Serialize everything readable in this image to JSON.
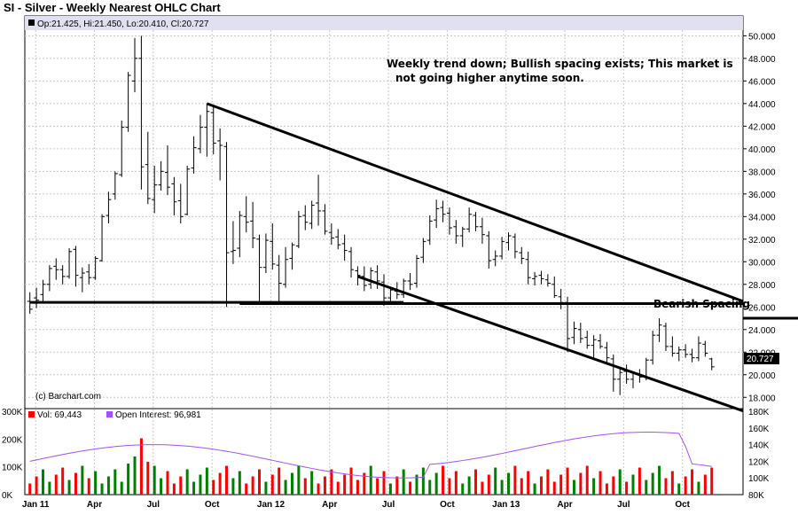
{
  "chart_data": {
    "type": "ohlc",
    "title": "SI - Silver - Weekly Nearest OHLC Chart",
    "ohlc_info": "Op:21.425, Hi:21.450, Lo:20.410, Cl:20.727",
    "last_price_label": "20.727",
    "credit": "(c) Barchart.com",
    "annotation_main": [
      "Weekly trend down; Bullish spacing exists; This market is",
      "not going higher anytime soon."
    ],
    "annotation_bearish": "Bearish Spacing",
    "price_axis": {
      "min": 17,
      "max": 50.5,
      "ticks": [
        "18.000",
        "20.000",
        "22.000",
        "24.000",
        "26.000",
        "28.000",
        "30.000",
        "32.000",
        "34.000",
        "36.000",
        "38.000",
        "40.000",
        "42.000",
        "44.000",
        "46.000",
        "48.000",
        "50.000"
      ]
    },
    "x_labels": [
      "Jan 11",
      "Apr",
      "Jul",
      "Oct",
      "Jan 12",
      "Apr",
      "Jul",
      "Oct",
      "Jan 13",
      "Apr",
      "Jul",
      "Oct"
    ],
    "volume_panel": {
      "vol_label": "Vol: 69,443",
      "oi_label": "Open Interest: 96,981",
      "vol_ticks": [
        "300K",
        "200K",
        "100K",
        "0K"
      ],
      "oi_ticks": [
        "180K",
        "160K",
        "140K",
        "120K",
        "100K",
        "80K"
      ],
      "vol_max": 300000,
      "oi_min": 80000,
      "oi_max": 180000
    },
    "lines": [
      {
        "name": "support",
        "points": [
          [
            0,
            26.4
          ],
          [
            57,
            26.4
          ]
        ]
      },
      {
        "name": "support2",
        "points": [
          [
            32,
            26.3
          ],
          [
            117,
            26.3
          ]
        ]
      },
      {
        "name": "downtrend-upper",
        "points": [
          [
            27,
            44.0
          ],
          [
            152,
            26.5
          ]
        ]
      },
      {
        "name": "downtrend-lower",
        "points": [
          [
            50,
            28.7
          ],
          [
            152,
            16.8
          ]
        ]
      },
      {
        "name": "bearish-spacing",
        "points": [
          [
            133,
            25.0
          ],
          [
            151,
            25.0
          ]
        ]
      }
    ],
    "colors": {
      "up": "#008000",
      "down": "#ff0000",
      "oi": "#a050ff",
      "bar": "#000000"
    },
    "weeks": [
      [
        26.5,
        27.3,
        25.4,
        25.8
      ],
      [
        26.8,
        27.7,
        25.9,
        26.6
      ],
      [
        27.1,
        28.4,
        26.3,
        28.0
      ],
      [
        28.0,
        29.7,
        27.4,
        29.4
      ],
      [
        29.6,
        30.3,
        28.4,
        29.3
      ],
      [
        29.3,
        29.7,
        28.0,
        28.7
      ],
      [
        28.7,
        31.2,
        28.5,
        30.9
      ],
      [
        31.1,
        31.4,
        27.8,
        28.8
      ],
      [
        28.6,
        29.5,
        27.3,
        29.0
      ],
      [
        29.1,
        29.8,
        28.0,
        28.6
      ],
      [
        28.6,
        30.5,
        28.4,
        30.3
      ],
      [
        30.1,
        34.2,
        30.0,
        34.0
      ],
      [
        34.1,
        36.2,
        33.4,
        35.5
      ],
      [
        36.0,
        38.0,
        35.5,
        37.8
      ],
      [
        37.7,
        42.5,
        37.5,
        41.9
      ],
      [
        41.9,
        46.8,
        41.5,
        46.5
      ],
      [
        46.0,
        49.8,
        45.0,
        48.0
      ],
      [
        48.0,
        50.0,
        36.4,
        38.4
      ],
      [
        38.6,
        41.5,
        35.1,
        35.6
      ],
      [
        35.5,
        38.5,
        34.3,
        36.8
      ],
      [
        36.8,
        38.9,
        36.3,
        38.0
      ],
      [
        37.9,
        40.3,
        35.9,
        36.6
      ],
      [
        36.9,
        37.5,
        34.1,
        35.3
      ],
      [
        35.4,
        36.9,
        33.4,
        34.0
      ],
      [
        34.2,
        38.5,
        34.1,
        38.2
      ],
      [
        38.3,
        41.1,
        37.8,
        40.1
      ],
      [
        40.0,
        43.0,
        39.6,
        41.9
      ],
      [
        41.9,
        44.0,
        39.3,
        43.3
      ],
      [
        43.2,
        43.9,
        39.5,
        40.5
      ],
      [
        40.7,
        41.8,
        37.2,
        40.3
      ],
      [
        40.2,
        40.6,
        26.0,
        30.8
      ],
      [
        30.9,
        33.6,
        29.8,
        31.0
      ],
      [
        31.2,
        34.5,
        30.4,
        34.1
      ],
      [
        34.0,
        35.8,
        32.6,
        33.5
      ],
      [
        33.6,
        35.3,
        31.2,
        32.1
      ],
      [
        32.0,
        32.4,
        26.5,
        29.5
      ],
      [
        29.5,
        32.5,
        29.0,
        31.9
      ],
      [
        31.8,
        33.4,
        29.3,
        29.8
      ],
      [
        29.7,
        30.6,
        26.2,
        28.1
      ],
      [
        28.0,
        31.3,
        27.7,
        30.2
      ],
      [
        30.3,
        31.7,
        29.3,
        31.5
      ],
      [
        31.4,
        34.5,
        31.2,
        34.0
      ],
      [
        34.1,
        35.0,
        32.8,
        33.5
      ],
      [
        33.4,
        35.4,
        32.9,
        35.0
      ],
      [
        35.2,
        37.7,
        33.2,
        34.5
      ],
      [
        34.5,
        35.1,
        32.4,
        32.7
      ],
      [
        32.6,
        33.4,
        31.5,
        32.1
      ],
      [
        32.2,
        32.9,
        31.1,
        31.5
      ],
      [
        31.6,
        32.4,
        30.1,
        31.0
      ],
      [
        30.9,
        31.3,
        28.6,
        29.3
      ],
      [
        29.2,
        29.6,
        27.9,
        28.8
      ],
      [
        28.7,
        29.6,
        27.4,
        27.9
      ],
      [
        28.0,
        29.5,
        27.6,
        29.2
      ],
      [
        29.1,
        29.7,
        27.6,
        28.3
      ],
      [
        28.2,
        28.9,
        26.1,
        26.8
      ],
      [
        26.8,
        27.8,
        26.3,
        27.5
      ],
      [
        27.4,
        28.2,
        26.7,
        27.1
      ],
      [
        27.1,
        28.5,
        26.8,
        28.3
      ],
      [
        28.3,
        29.0,
        27.5,
        28.0
      ],
      [
        28.1,
        30.6,
        27.7,
        30.3
      ],
      [
        30.4,
        32.1,
        29.9,
        31.8
      ],
      [
        31.9,
        34.1,
        31.5,
        33.6
      ],
      [
        33.7,
        35.5,
        33.0,
        34.7
      ],
      [
        34.8,
        35.4,
        33.5,
        34.2
      ],
      [
        34.3,
        34.8,
        32.4,
        33.0
      ],
      [
        33.1,
        33.7,
        31.6,
        32.3
      ],
      [
        32.3,
        33.1,
        31.3,
        32.9
      ],
      [
        32.9,
        34.8,
        32.6,
        34.2
      ],
      [
        34.1,
        34.4,
        32.7,
        33.1
      ],
      [
        33.1,
        33.9,
        31.6,
        32.4
      ],
      [
        32.3,
        32.7,
        29.4,
        30.1
      ],
      [
        30.2,
        31.0,
        29.6,
        30.5
      ],
      [
        30.5,
        32.2,
        30.2,
        31.8
      ],
      [
        31.7,
        32.6,
        31.0,
        32.3
      ],
      [
        32.2,
        32.5,
        30.3,
        30.9
      ],
      [
        30.8,
        31.3,
        29.8,
        30.3
      ],
      [
        30.2,
        30.9,
        28.0,
        28.6
      ],
      [
        28.5,
        29.1,
        27.9,
        28.7
      ],
      [
        28.8,
        29.2,
        28.0,
        28.5
      ],
      [
        28.4,
        28.9,
        27.8,
        28.1
      ],
      [
        28.0,
        28.7,
        26.8,
        27.0
      ],
      [
        26.9,
        27.6,
        25.8,
        26.4
      ],
      [
        26.4,
        26.9,
        22.0,
        23.2
      ],
      [
        23.3,
        24.7,
        22.7,
        24.1
      ],
      [
        24.0,
        24.6,
        22.8,
        23.2
      ],
      [
        23.3,
        23.9,
        22.3,
        22.6
      ],
      [
        22.6,
        23.5,
        21.5,
        23.1
      ],
      [
        23.0,
        23.6,
        22.3,
        22.5
      ],
      [
        22.4,
        22.9,
        21.0,
        21.5
      ],
      [
        21.4,
        21.8,
        18.5,
        19.6
      ],
      [
        19.6,
        20.7,
        18.2,
        20.2
      ],
      [
        20.3,
        20.9,
        19.2,
        19.6
      ],
      [
        19.6,
        20.3,
        18.8,
        20.1
      ],
      [
        20.0,
        20.5,
        19.3,
        19.8
      ],
      [
        19.8,
        21.5,
        19.5,
        21.3
      ],
      [
        21.3,
        23.9,
        20.9,
        23.5
      ],
      [
        23.5,
        25.0,
        22.9,
        24.4
      ],
      [
        24.3,
        24.6,
        22.1,
        22.5
      ],
      [
        22.5,
        23.4,
        21.6,
        21.9
      ],
      [
        21.9,
        22.5,
        21.2,
        22.2
      ],
      [
        22.2,
        22.7,
        21.5,
        21.8
      ],
      [
        21.8,
        22.3,
        21.1,
        21.5
      ],
      [
        21.5,
        23.4,
        21.2,
        22.8
      ],
      [
        22.7,
        23.0,
        21.6,
        21.9
      ],
      [
        21.4,
        21.5,
        20.4,
        20.7
      ]
    ]
  }
}
